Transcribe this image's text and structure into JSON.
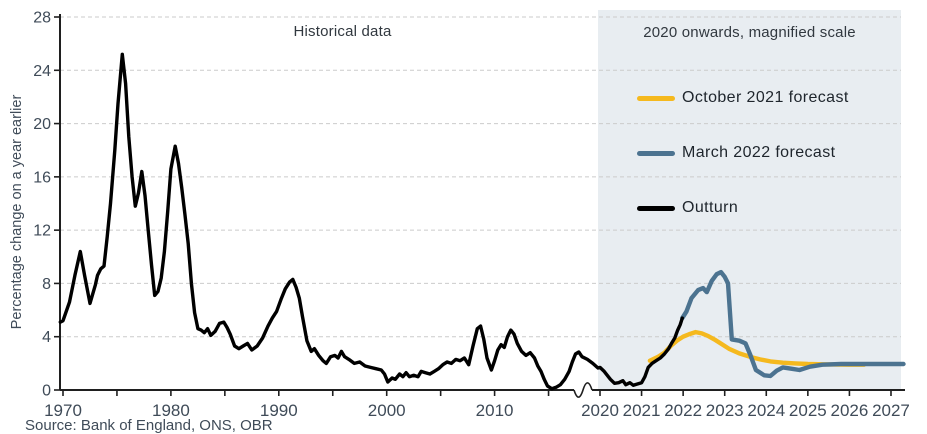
{
  "figure": {
    "section_labels": {
      "historical": "Historical data",
      "magnified": "2020 onwards, magnified scale"
    },
    "y_axis_title": "Percentage change on a year earlier",
    "source_note": "Source: Bank of England, ONS, OBR"
  },
  "chart_data": {
    "type": "line",
    "title": "",
    "ylabel": "Percentage change on a year earlier",
    "ylim": [
      0,
      28
    ],
    "y_ticks": [
      0,
      4,
      8,
      12,
      16,
      20,
      24,
      28
    ],
    "grid": "horizontal dashed gridlines at each labelled y tick",
    "x_axis": {
      "historical_tick_labels": [
        "1970",
        "1980",
        "1990",
        "2000",
        "2010"
      ],
      "historical_minor_ticks": [
        1975,
        1985,
        1995,
        2005,
        2015
      ],
      "magnified_tick_labels": [
        "2020",
        "2021",
        "2022",
        "2023",
        "2024",
        "2025",
        "2026",
        "2027"
      ],
      "axis_break": "wavy break symbol in x-axis between the compressed historical scale and the magnified 2020-2027 scale"
    },
    "legend_position": "inside shaded magnified panel, upper right",
    "colors": {
      "outturn": "#000000",
      "october_2021": "#F5B91E",
      "march_2022": "#4C7390",
      "magnified_panel": "#E8EDF1",
      "gridline": "#CBCBCB",
      "axis": "#1F1F1F"
    },
    "series": [
      {
        "name": "October 2021 forecast",
        "color": "#F5B91E",
        "points": [
          [
            2021.2,
            2.2
          ],
          [
            2021.4,
            2.5
          ],
          [
            2021.55,
            2.8
          ],
          [
            2021.7,
            3.3
          ],
          [
            2021.85,
            3.7
          ],
          [
            2022.0,
            4.0
          ],
          [
            2022.15,
            4.2
          ],
          [
            2022.3,
            4.35
          ],
          [
            2022.45,
            4.25
          ],
          [
            2022.6,
            4.05
          ],
          [
            2022.75,
            3.8
          ],
          [
            2022.9,
            3.5
          ],
          [
            2023.1,
            3.1
          ],
          [
            2023.35,
            2.75
          ],
          [
            2023.6,
            2.5
          ],
          [
            2023.85,
            2.3
          ],
          [
            2024.1,
            2.15
          ],
          [
            2024.4,
            2.05
          ],
          [
            2024.7,
            2.0
          ],
          [
            2025.0,
            1.95
          ],
          [
            2025.5,
            1.92
          ],
          [
            2026.0,
            1.9
          ],
          [
            2026.35,
            1.9
          ]
        ]
      },
      {
        "name": "March 2022 forecast",
        "color": "#4C7390",
        "points": [
          [
            2021.98,
            5.4
          ],
          [
            2022.08,
            5.9
          ],
          [
            2022.2,
            6.9
          ],
          [
            2022.36,
            7.5
          ],
          [
            2022.48,
            7.65
          ],
          [
            2022.57,
            7.35
          ],
          [
            2022.69,
            8.2
          ],
          [
            2022.81,
            8.7
          ],
          [
            2022.91,
            8.85
          ],
          [
            2023.0,
            8.5
          ],
          [
            2023.08,
            8.0
          ],
          [
            2023.17,
            3.8
          ],
          [
            2023.35,
            3.7
          ],
          [
            2023.5,
            3.5
          ],
          [
            2023.62,
            2.6
          ],
          [
            2023.75,
            1.5
          ],
          [
            2023.95,
            1.1
          ],
          [
            2024.1,
            1.05
          ],
          [
            2024.25,
            1.45
          ],
          [
            2024.4,
            1.7
          ],
          [
            2024.6,
            1.6
          ],
          [
            2024.8,
            1.5
          ],
          [
            2025.05,
            1.75
          ],
          [
            2025.35,
            1.9
          ],
          [
            2025.8,
            1.95
          ],
          [
            2026.6,
            1.95
          ],
          [
            2027.3,
            1.95
          ]
        ]
      },
      {
        "name": "Outturn",
        "color": "#000000",
        "points": [
          [
            1969.75,
            5.1
          ],
          [
            1970.0,
            5.2
          ],
          [
            1970.6,
            6.6
          ],
          [
            1971.1,
            8.6
          ],
          [
            1971.6,
            10.4
          ],
          [
            1972.0,
            8.6
          ],
          [
            1972.5,
            6.5
          ],
          [
            1973.0,
            7.9
          ],
          [
            1973.2,
            8.6
          ],
          [
            1973.5,
            9.1
          ],
          [
            1973.8,
            9.3
          ],
          [
            1974.1,
            11.5
          ],
          [
            1974.4,
            14.0
          ],
          [
            1974.8,
            18.0
          ],
          [
            1975.1,
            21.5
          ],
          [
            1975.5,
            25.2
          ],
          [
            1975.8,
            23.0
          ],
          [
            1976.1,
            19.0
          ],
          [
            1976.4,
            16.0
          ],
          [
            1976.7,
            13.8
          ],
          [
            1977.0,
            14.8
          ],
          [
            1977.3,
            16.4
          ],
          [
            1977.6,
            14.6
          ],
          [
            1977.9,
            12.0
          ],
          [
            1978.2,
            9.4
          ],
          [
            1978.5,
            7.1
          ],
          [
            1978.8,
            7.4
          ],
          [
            1979.1,
            8.4
          ],
          [
            1979.4,
            10.4
          ],
          [
            1979.7,
            13.4
          ],
          [
            1980.0,
            16.6
          ],
          [
            1980.4,
            18.3
          ],
          [
            1980.7,
            17.0
          ],
          [
            1981.0,
            15.2
          ],
          [
            1981.3,
            13.2
          ],
          [
            1981.6,
            11.0
          ],
          [
            1981.9,
            8.0
          ],
          [
            1982.2,
            5.8
          ],
          [
            1982.5,
            4.6
          ],
          [
            1982.8,
            4.5
          ],
          [
            1983.1,
            4.3
          ],
          [
            1983.4,
            4.6
          ],
          [
            1983.7,
            4.1
          ],
          [
            1984.1,
            4.4
          ],
          [
            1984.5,
            5.0
          ],
          [
            1984.9,
            5.1
          ],
          [
            1985.2,
            4.7
          ],
          [
            1985.5,
            4.2
          ],
          [
            1985.9,
            3.3
          ],
          [
            1986.3,
            3.1
          ],
          [
            1986.7,
            3.3
          ],
          [
            1987.1,
            3.5
          ],
          [
            1987.5,
            3.0
          ],
          [
            1988.0,
            3.3
          ],
          [
            1988.5,
            3.9
          ],
          [
            1989.0,
            4.8
          ],
          [
            1989.4,
            5.4
          ],
          [
            1989.8,
            5.9
          ],
          [
            1990.2,
            6.8
          ],
          [
            1990.6,
            7.6
          ],
          [
            1991.0,
            8.1
          ],
          [
            1991.3,
            8.3
          ],
          [
            1991.6,
            7.7
          ],
          [
            1991.9,
            6.9
          ],
          [
            1992.2,
            5.5
          ],
          [
            1992.6,
            3.7
          ],
          [
            1993.0,
            2.9
          ],
          [
            1993.3,
            3.1
          ],
          [
            1993.7,
            2.6
          ],
          [
            1994.1,
            2.2
          ],
          [
            1994.4,
            2.0
          ],
          [
            1994.8,
            2.5
          ],
          [
            1995.2,
            2.6
          ],
          [
            1995.5,
            2.4
          ],
          [
            1995.8,
            2.9
          ],
          [
            1996.1,
            2.5
          ],
          [
            1996.5,
            2.3
          ],
          [
            1997.0,
            2.0
          ],
          [
            1997.5,
            2.1
          ],
          [
            1998.0,
            1.8
          ],
          [
            1998.5,
            1.7
          ],
          [
            1999.0,
            1.6
          ],
          [
            1999.5,
            1.5
          ],
          [
            1999.8,
            1.2
          ],
          [
            2000.1,
            0.6
          ],
          [
            2000.5,
            0.9
          ],
          [
            2000.8,
            0.8
          ],
          [
            2001.2,
            1.2
          ],
          [
            2001.5,
            1.0
          ],
          [
            2001.8,
            1.3
          ],
          [
            2002.1,
            1.0
          ],
          [
            2002.5,
            1.1
          ],
          [
            2002.9,
            1.0
          ],
          [
            2003.2,
            1.4
          ],
          [
            2003.6,
            1.3
          ],
          [
            2004.0,
            1.2
          ],
          [
            2004.4,
            1.4
          ],
          [
            2004.8,
            1.6
          ],
          [
            2005.2,
            1.9
          ],
          [
            2005.6,
            2.1
          ],
          [
            2006.0,
            2.0
          ],
          [
            2006.4,
            2.3
          ],
          [
            2006.8,
            2.2
          ],
          [
            2007.2,
            2.4
          ],
          [
            2007.6,
            1.9
          ],
          [
            2008.0,
            3.3
          ],
          [
            2008.4,
            4.6
          ],
          [
            2008.7,
            4.8
          ],
          [
            2009.0,
            3.8
          ],
          [
            2009.3,
            2.4
          ],
          [
            2009.7,
            1.5
          ],
          [
            2010.0,
            2.2
          ],
          [
            2010.3,
            3.0
          ],
          [
            2010.6,
            3.4
          ],
          [
            2010.9,
            3.2
          ],
          [
            2011.2,
            4.0
          ],
          [
            2011.5,
            4.5
          ],
          [
            2011.8,
            4.2
          ],
          [
            2012.1,
            3.5
          ],
          [
            2012.5,
            2.9
          ],
          [
            2012.9,
            2.6
          ],
          [
            2013.3,
            2.8
          ],
          [
            2013.7,
            2.4
          ],
          [
            2014.0,
            1.8
          ],
          [
            2014.3,
            1.4
          ],
          [
            2014.6,
            0.8
          ],
          [
            2014.9,
            0.3
          ],
          [
            2015.3,
            0.1
          ],
          [
            2015.7,
            0.2
          ],
          [
            2016.1,
            0.4
          ],
          [
            2016.5,
            0.8
          ],
          [
            2016.9,
            1.4
          ],
          [
            2017.2,
            2.1
          ],
          [
            2017.5,
            2.7
          ],
          [
            2017.8,
            2.85
          ],
          [
            2018.1,
            2.5
          ],
          [
            2018.6,
            2.3
          ],
          [
            2019.1,
            2.0
          ],
          [
            2019.58,
            1.65
          ],
          [
            2020.0,
            1.7
          ],
          [
            2020.1,
            1.4
          ],
          [
            2020.25,
            0.8
          ],
          [
            2020.35,
            0.5
          ],
          [
            2020.45,
            0.55
          ],
          [
            2020.55,
            0.7
          ],
          [
            2020.62,
            0.4
          ],
          [
            2020.72,
            0.55
          ],
          [
            2020.8,
            0.35
          ],
          [
            2020.9,
            0.45
          ],
          [
            2021.0,
            0.55
          ],
          [
            2021.08,
            1.0
          ],
          [
            2021.16,
            1.7
          ],
          [
            2021.25,
            2.0
          ],
          [
            2021.35,
            2.2
          ],
          [
            2021.45,
            2.4
          ],
          [
            2021.55,
            2.7
          ],
          [
            2021.65,
            3.1
          ],
          [
            2021.72,
            3.5
          ],
          [
            2021.8,
            3.9
          ],
          [
            2021.87,
            4.5
          ],
          [
            2021.93,
            4.9
          ],
          [
            2021.98,
            5.4
          ]
        ]
      }
    ]
  }
}
